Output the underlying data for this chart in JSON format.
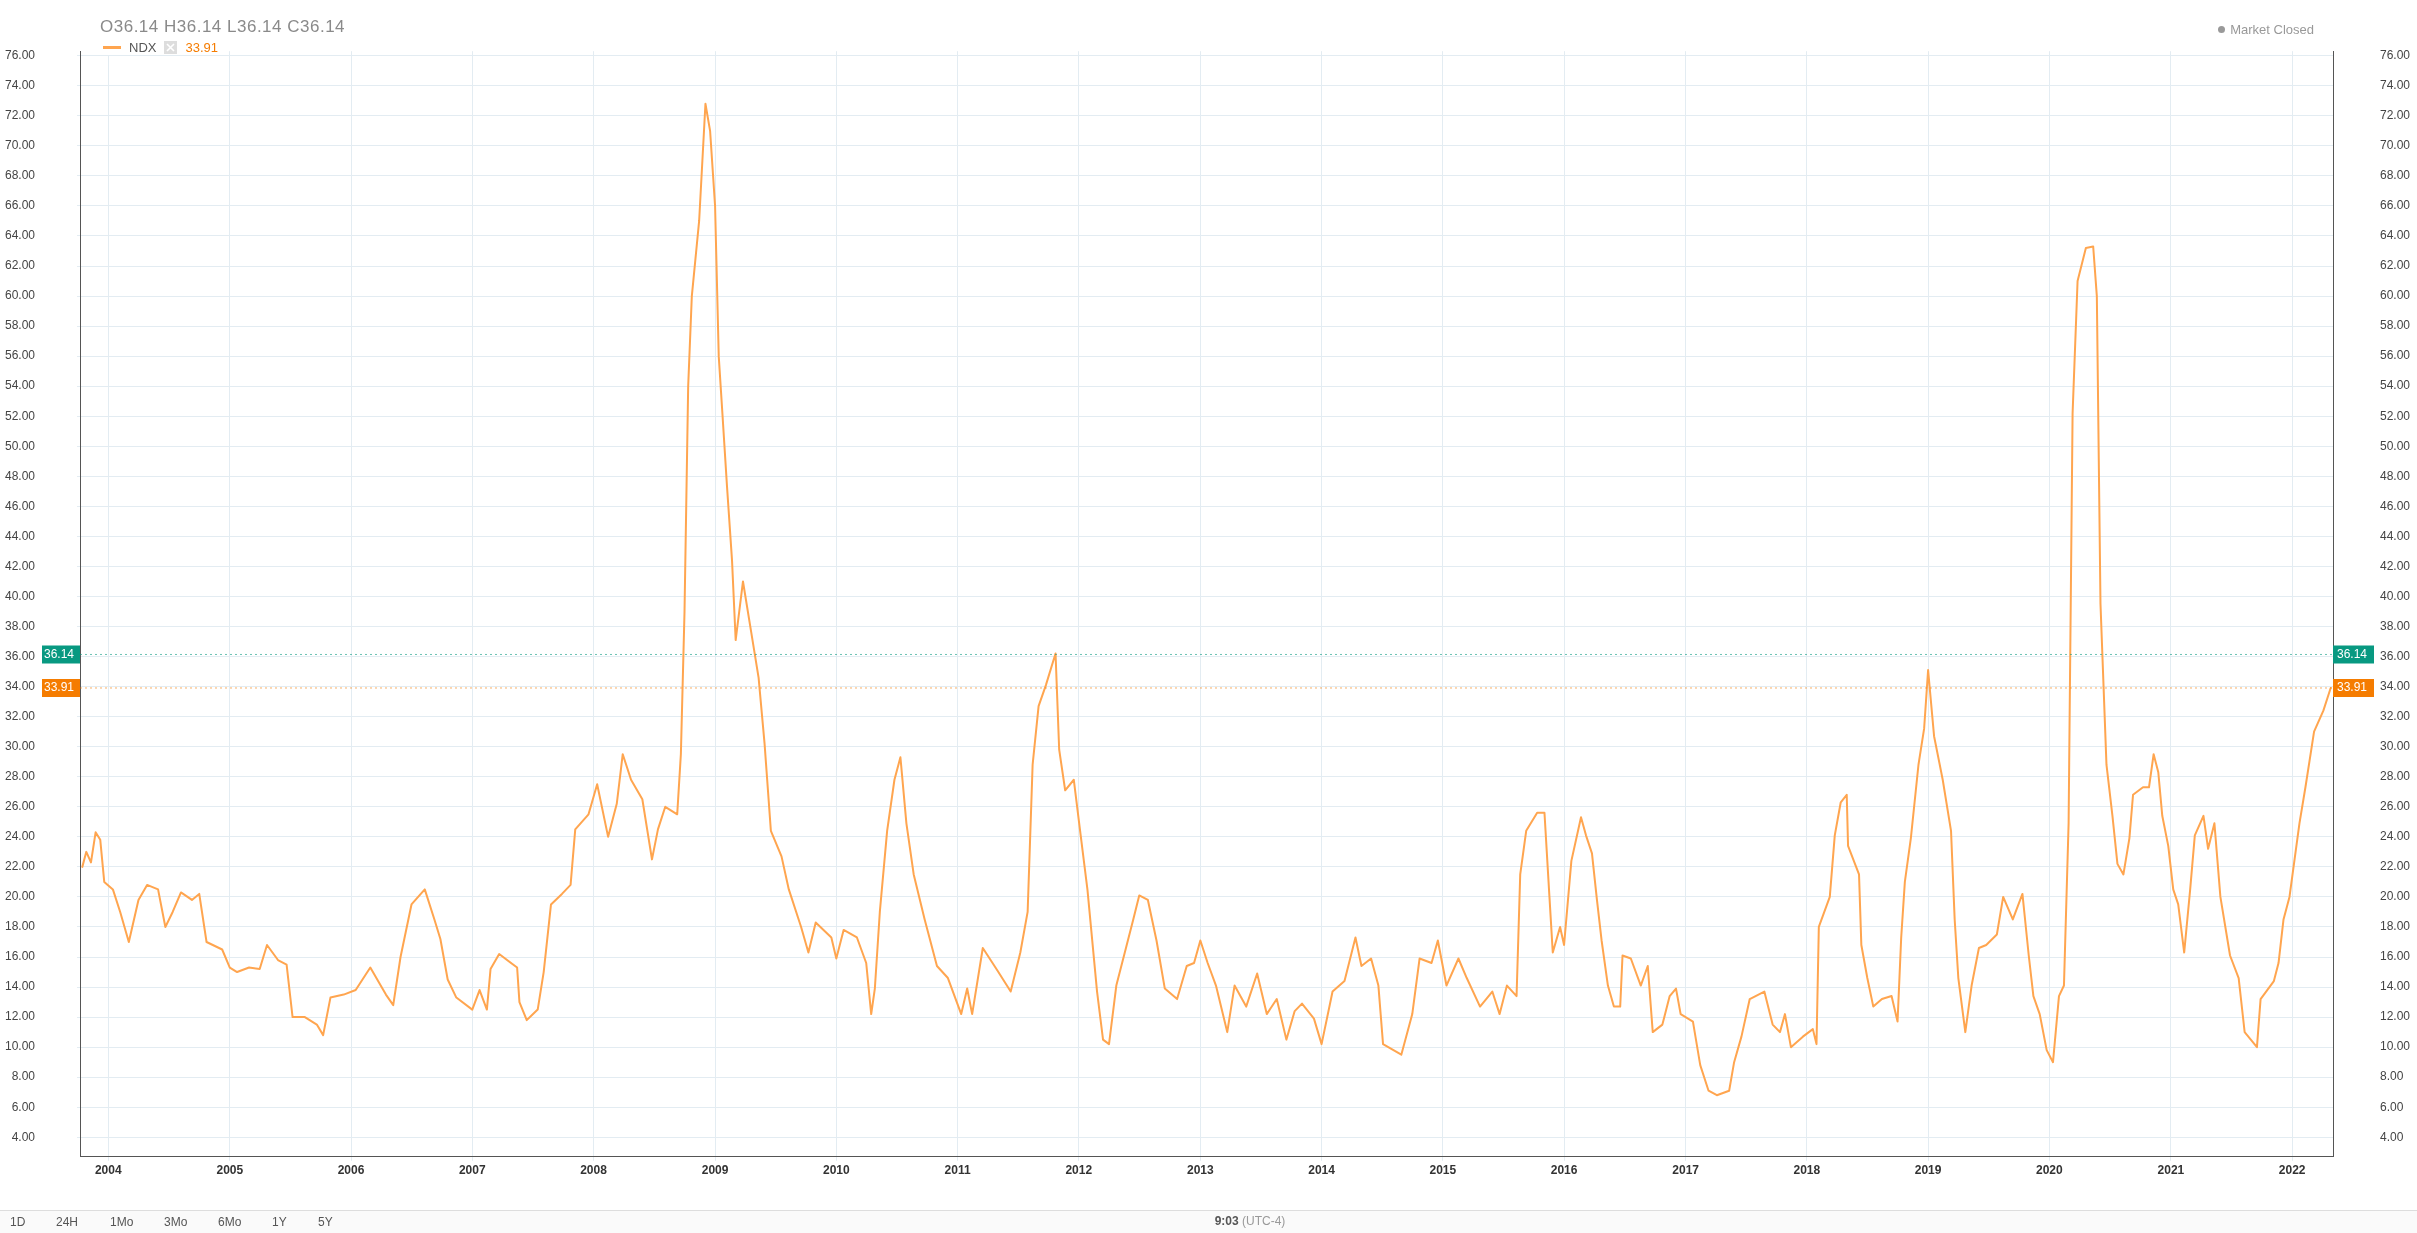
{
  "chart_data": {
    "type": "line",
    "legend": "top left",
    "grid": true,
    "marker": "none",
    "xlim": [
      "2003-10-08",
      "2022-05-04"
    ],
    "xticks": [
      "2004",
      "2005",
      "2006",
      "2007",
      "2008",
      "2009",
      "2010",
      "2011",
      "2012",
      "2013",
      "2014",
      "2015",
      "2016",
      "2017",
      "2018",
      "2019",
      "2020",
      "2021",
      "2022"
    ],
    "ylim": [
      2.7,
      76.3
    ],
    "yticks": [
      {
        "value": 4,
        "label": "4.00"
      },
      {
        "value": 6,
        "label": "6.00"
      },
      {
        "value": 8,
        "label": "8.00"
      },
      {
        "value": 10,
        "label": "10.00"
      },
      {
        "value": 12,
        "label": "12.00"
      },
      {
        "value": 14,
        "label": "14.00"
      },
      {
        "value": 16,
        "label": "16.00"
      },
      {
        "value": 18,
        "label": "18.00"
      },
      {
        "value": 20,
        "label": "20.00"
      },
      {
        "value": 22,
        "label": "22.00"
      },
      {
        "value": 24,
        "label": "24.00"
      },
      {
        "value": 26,
        "label": "26.00"
      },
      {
        "value": 28,
        "label": "28.00"
      },
      {
        "value": 30,
        "label": "30.00"
      },
      {
        "value": 32,
        "label": "32.00"
      },
      {
        "value": 34,
        "label": "34.00"
      },
      {
        "value": 36,
        "label": "36.00"
      },
      {
        "value": 38,
        "label": "38.00"
      },
      {
        "value": 40,
        "label": "40.00"
      },
      {
        "value": 42,
        "label": "42.00"
      },
      {
        "value": 44,
        "label": "44.00"
      },
      {
        "value": 46,
        "label": "46.00"
      },
      {
        "value": 48,
        "label": "48.00"
      },
      {
        "value": 50,
        "label": "50.00"
      },
      {
        "value": 52,
        "label": "52.00"
      },
      {
        "value": 54,
        "label": "54.00"
      },
      {
        "value": 56,
        "label": "56.00"
      },
      {
        "value": 58,
        "label": "58.00"
      },
      {
        "value": 60,
        "label": "60.00"
      },
      {
        "value": 62,
        "label": "62.00"
      },
      {
        "value": 64,
        "label": "64.00"
      },
      {
        "value": 66,
        "label": "66.00"
      },
      {
        "value": 68,
        "label": "68.00"
      },
      {
        "value": 70,
        "label": "70.00"
      },
      {
        "value": 72,
        "label": "72.00"
      },
      {
        "value": 74,
        "label": "74.00"
      },
      {
        "value": 76,
        "label": "76.00"
      }
    ],
    "y2lim": [
      2.7,
      76.3
    ],
    "y2ticks": [
      {
        "value": 4,
        "label": "4.00"
      },
      {
        "value": 6,
        "label": "6.00"
      },
      {
        "value": 8,
        "label": "8.00"
      },
      {
        "value": 10,
        "label": "10.00"
      },
      {
        "value": 12,
        "label": "12.00"
      },
      {
        "value": 14,
        "label": "14.00"
      },
      {
        "value": 16,
        "label": "16.00"
      },
      {
        "value": 18,
        "label": "18.00"
      },
      {
        "value": 20,
        "label": "20.00"
      },
      {
        "value": 22,
        "label": "22.00"
      },
      {
        "value": 24,
        "label": "24.00"
      },
      {
        "value": 26,
        "label": "26.00"
      },
      {
        "value": 28,
        "label": "28.00"
      },
      {
        "value": 30,
        "label": "30.00"
      },
      {
        "value": 32,
        "label": "32.00"
      },
      {
        "value": 34,
        "label": "34.00"
      },
      {
        "value": 36,
        "label": "36.00"
      },
      {
        "value": 38,
        "label": "38.00"
      },
      {
        "value": 40,
        "label": "40.00"
      },
      {
        "value": 42,
        "label": "42.00"
      },
      {
        "value": 44,
        "label": "44.00"
      },
      {
        "value": 46,
        "label": "46.00"
      },
      {
        "value": 48,
        "label": "48.00"
      },
      {
        "value": 50,
        "label": "50.00"
      },
      {
        "value": 52,
        "label": "52.00"
      },
      {
        "value": 54,
        "label": "54.00"
      },
      {
        "value": 56,
        "label": "56.00"
      },
      {
        "value": 58,
        "label": "58.00"
      },
      {
        "value": 60,
        "label": "60.00"
      },
      {
        "value": 62,
        "label": "62.00"
      },
      {
        "value": 64,
        "label": "64.00"
      },
      {
        "value": 66,
        "label": "66.00"
      },
      {
        "value": 68,
        "label": "68.00"
      },
      {
        "value": 70,
        "label": "70.00"
      },
      {
        "value": 72,
        "label": "72.00"
      },
      {
        "value": 74,
        "label": "74.00"
      },
      {
        "value": 76,
        "label": "76.00"
      }
    ],
    "annotations": [
      "O36.14 H36.14 L36.14 C36.14",
      "Market Closed",
      "33.91",
      "1D",
      "24H",
      "1Mo",
      "3Mo",
      "6Mo",
      "1Y",
      "5Y",
      "9:03 (UTC-4)"
    ],
    "ref_lines": [
      {
        "axis": "y",
        "value": 36.14,
        "label": "36.14",
        "color": "#089981",
        "line_style": "dotted"
      },
      {
        "axis": "y",
        "value": 33.91,
        "label": "33.91",
        "color": "#f57c00",
        "line_style": "dotted"
      }
    ],
    "series": [
      {
        "name": "NDX",
        "color": "#ffa54f",
        "x": [
          "2003-10-15",
          "2003-10-27",
          "2003-11-10",
          "2003-11-24",
          "2003-12-08",
          "2003-12-20",
          "2004-01-15",
          "2004-02-06",
          "2004-03-03",
          "2004-04-01",
          "2004-04-27",
          "2004-05-30",
          "2004-06-21",
          "2004-07-13",
          "2004-08-07",
          "2004-09-09",
          "2004-10-01",
          "2004-10-23",
          "2004-12-09",
          "2005-01-01",
          "2005-01-23",
          "2005-02-28",
          "2005-04-01",
          "2005-04-23",
          "2005-05-26",
          "2005-06-21",
          "2005-07-09",
          "2005-08-15",
          "2005-09-20",
          "2005-10-09",
          "2005-10-31",
          "2005-12-10",
          "2006-01-15",
          "2006-02-28",
          "2006-04-16",
          "2006-05-08",
          "2006-05-30",
          "2006-07-02",
          "2006-08-11",
          "2006-09-09",
          "2006-09-27",
          "2006-10-19",
          "2006-11-14",
          "2007-01-01",
          "2007-01-23",
          "2007-02-14",
          "2007-02-25",
          "2007-03-23",
          "2007-05-16",
          "2007-05-23",
          "2007-06-14",
          "2007-07-17",
          "2007-08-04",
          "2007-08-26",
          "2007-09-28",
          "2007-10-24",
          "2007-11-07",
          "2007-12-17",
          "2008-01-12",
          "2008-02-14",
          "2008-03-11",
          "2008-03-29",
          "2008-04-23",
          "2008-05-27",
          "2008-06-25",
          "2008-07-13",
          "2008-08-04",
          "2008-09-09",
          "2008-09-20",
          "2008-10-01",
          "2008-10-12",
          "2008-10-23",
          "2008-11-14",
          "2008-12-03",
          "2008-12-17",
          "2009-01-01",
          "2009-01-12",
          "2009-01-23",
          "2009-02-06",
          "2009-02-21",
          "2009-03-04",
          "2009-03-26",
          "2009-04-20",
          "2009-05-12",
          "2009-05-30",
          "2009-06-18",
          "2009-07-20",
          "2009-08-11",
          "2009-09-17",
          "2009-10-09",
          "2009-10-31",
          "2009-12-17",
          "2010-01-01",
          "2010-01-23",
          "2010-03-04",
          "2010-04-01",
          "2010-04-16",
          "2010-04-27",
          "2010-05-12",
          "2010-06-03",
          "2010-06-25",
          "2010-07-13",
          "2010-07-31",
          "2010-08-22",
          "2010-09-24",
          "2010-10-31",
          "2010-12-03",
          "2011-01-12",
          "2011-01-30",
          "2011-02-14",
          "2011-03-18",
          "2011-05-01",
          "2011-06-10",
          "2011-07-09",
          "2011-07-31",
          "2011-08-15",
          "2011-09-02",
          "2011-09-24",
          "2011-10-23",
          "2011-11-03",
          "2011-11-21",
          "2011-12-17",
          "2012-01-05",
          "2012-01-27",
          "2012-02-25",
          "2012-03-14",
          "2012-04-01",
          "2012-04-23",
          "2012-05-22",
          "2012-06-13",
          "2012-07-01",
          "2012-07-27",
          "2012-08-22",
          "2012-09-16",
          "2012-10-23",
          "2012-11-21",
          "2012-12-13",
          "2013-01-01",
          "2013-01-23",
          "2013-02-17",
          "2013-03-23",
          "2013-04-14",
          "2013-05-19",
          "2013-06-21",
          "2013-07-20",
          "2013-08-19",
          "2013-09-17",
          "2013-10-12",
          "2013-11-03",
          "2013-12-09",
          "2014-01-01",
          "2014-02-03",
          "2014-03-11",
          "2014-04-13",
          "2014-05-01",
          "2014-05-30",
          "2014-06-21",
          "2014-07-05",
          "2014-08-29",
          "2014-10-01",
          "2014-10-23",
          "2014-11-28",
          "2014-12-17",
          "2015-01-12",
          "2015-02-17",
          "2015-03-14",
          "2015-04-23",
          "2015-05-30",
          "2015-06-21",
          "2015-07-13",
          "2015-08-11",
          "2015-08-22",
          "2015-09-09",
          "2015-10-12",
          "2015-11-03",
          "2015-11-18",
          "2015-11-28",
          "2015-12-20",
          "2016-01-01",
          "2016-01-23",
          "2016-02-21",
          "2016-03-07",
          "2016-03-25",
          "2016-04-09",
          "2016-04-23",
          "2016-05-12",
          "2016-05-30",
          "2016-06-18",
          "2016-06-25",
          "2016-07-20",
          "2016-08-19",
          "2016-09-09",
          "2016-09-24",
          "2016-10-23",
          "2016-11-14",
          "2016-12-03",
          "2016-12-17",
          "2017-01-23",
          "2017-02-14",
          "2017-03-11",
          "2017-04-05",
          "2017-05-12",
          "2017-05-27",
          "2017-06-18",
          "2017-07-13",
          "2017-08-26",
          "2017-09-20",
          "2017-10-12",
          "2017-10-27",
          "2017-11-14",
          "2017-12-20",
          "2018-01-19",
          "2018-01-30",
          "2018-02-06",
          "2018-03-11",
          "2018-03-26",
          "2018-04-13",
          "2018-05-01",
          "2018-05-05",
          "2018-06-07",
          "2018-06-14",
          "2018-07-02",
          "2018-07-20",
          "2018-08-15",
          "2018-09-13",
          "2018-10-01",
          "2018-10-12",
          "2018-10-23",
          "2018-11-10",
          "2018-12-03",
          "2018-12-20",
          "2019-01-01",
          "2019-01-19",
          "2019-02-14",
          "2019-03-11",
          "2019-03-22",
          "2019-04-02",
          "2019-04-23",
          "2019-05-12",
          "2019-06-03",
          "2019-06-25",
          "2019-07-27",
          "2019-08-15",
          "2019-09-13",
          "2019-10-12",
          "2019-10-31",
          "2019-11-14",
          "2019-12-03",
          "2019-12-24",
          "2020-01-12",
          "2020-01-30",
          "2020-02-14",
          "2020-02-28",
          "2020-03-11",
          "2020-03-26",
          "2020-04-20",
          "2020-05-12",
          "2020-05-23",
          "2020-06-03",
          "2020-06-21",
          "2020-07-09",
          "2020-07-24",
          "2020-08-11",
          "2020-08-29",
          "2020-09-09",
          "2020-10-09",
          "2020-10-27",
          "2020-11-10",
          "2020-11-24",
          "2020-12-06",
          "2020-12-24",
          "2021-01-08",
          "2021-01-23",
          "2021-02-10",
          "2021-02-28",
          "2021-03-14",
          "2021-04-09",
          "2021-04-23",
          "2021-05-12",
          "2021-05-30",
          "2021-06-28",
          "2021-07-24",
          "2021-08-11",
          "2021-09-17",
          "2021-09-28",
          "2021-11-07",
          "2021-11-21",
          "2021-12-06",
          "2021-12-24",
          "2022-01-23",
          "2022-02-10",
          "2022-03-08",
          "2022-04-05",
          "2022-04-27"
        ],
        "values": [
          22,
          23,
          22.3,
          24.3,
          23.8,
          21,
          20.5,
          19,
          17,
          19.8,
          20.8,
          20.5,
          18,
          19,
          20.3,
          19.8,
          20.2,
          17,
          16.5,
          15.3,
          15,
          15.3,
          15.2,
          16.8,
          15.8,
          15.5,
          12,
          12,
          11.5,
          10.8,
          13.3,
          13.5,
          13.8,
          15.3,
          13.5,
          12.8,
          16,
          19.5,
          20.5,
          18.5,
          17.2,
          14.5,
          13.3,
          12.5,
          13.8,
          12.5,
          15.2,
          16.2,
          15.3,
          13,
          11.8,
          12.5,
          15,
          19.5,
          20.2,
          20.8,
          24.5,
          25.5,
          27.5,
          24,
          26.2,
          29.5,
          27.8,
          26.5,
          22.5,
          24.5,
          26,
          25.5,
          29.5,
          39,
          54,
          60,
          65,
          72.8,
          71,
          66,
          56,
          52.2,
          47.3,
          42.4,
          37.1,
          41,
          37.6,
          34.6,
          30.2,
          24.4,
          22.7,
          20.5,
          18,
          16.3,
          18.3,
          17.3,
          15.9,
          17.8,
          17.3,
          15.6,
          12.2,
          13.9,
          19,
          24.4,
          27.8,
          29.3,
          24.9,
          21.5,
          18.5,
          15.4,
          14.6,
          12.2,
          13.9,
          12.2,
          16.6,
          15.1,
          13.7,
          16.3,
          19,
          28.8,
          32.7,
          34.1,
          36.2,
          29.8,
          27.1,
          27.8,
          24.4,
          20.5,
          13.7,
          10.5,
          10.2,
          14.1,
          16.6,
          18.5,
          20.1,
          19.8,
          17.1,
          13.9,
          13.2,
          15.4,
          15.6,
          17.1,
          15.6,
          14.1,
          11,
          14.1,
          12.7,
          14.9,
          12.2,
          13.2,
          10.5,
          12.4,
          12.9,
          11.9,
          10.2,
          13.7,
          14.4,
          17.3,
          15.4,
          15.9,
          14.1,
          10.2,
          9.5,
          12.2,
          15.9,
          15.6,
          17.1,
          14.1,
          15.9,
          14.6,
          12.7,
          13.7,
          12.2,
          14.1,
          13.4,
          21.5,
          24.4,
          25.6,
          25.6,
          20,
          16.3,
          18,
          16.8,
          22.4,
          25.3,
          24.1,
          22.9,
          19.8,
          17.1,
          14.1,
          12.7,
          12.7,
          16.1,
          15.9,
          14.1,
          15.4,
          11,
          11.5,
          13.4,
          13.9,
          12.2,
          11.7,
          8.8,
          7.1,
          6.8,
          7.1,
          9,
          10.7,
          13.2,
          13.7,
          11.5,
          11,
          12.2,
          10,
          10.7,
          11.2,
          10.2,
          18,
          20,
          24.1,
          26.3,
          26.8,
          23.4,
          21.5,
          16.8,
          14.6,
          12.7,
          13.2,
          13.4,
          11.7,
          17.3,
          21,
          23.9,
          28.8,
          31.2,
          35.1,
          30.7,
          27.8,
          24.4,
          18.5,
          14.6,
          11,
          14.1,
          16.6,
          16.8,
          17.5,
          20,
          18.5,
          20.2,
          16.1,
          13.4,
          12.2,
          9.8,
          9,
          13.4,
          14.1,
          24.9,
          52.2,
          61,
          63.2,
          63.3,
          60,
          39.5,
          28.8,
          25.4,
          22.2,
          21.5,
          23.9,
          26.8,
          27.3,
          27.3,
          29.5,
          28.3,
          25.4,
          23.4,
          20.5,
          19.5,
          16.3,
          20.5,
          24.1,
          25.4,
          23.2,
          24.9,
          20,
          16.1,
          14.6,
          11,
          10,
          13.2,
          14.4,
          15.6,
          18.5,
          20,
          24.9,
          27.3,
          31,
          32.4,
          33.91
        ]
      }
    ]
  }
}
